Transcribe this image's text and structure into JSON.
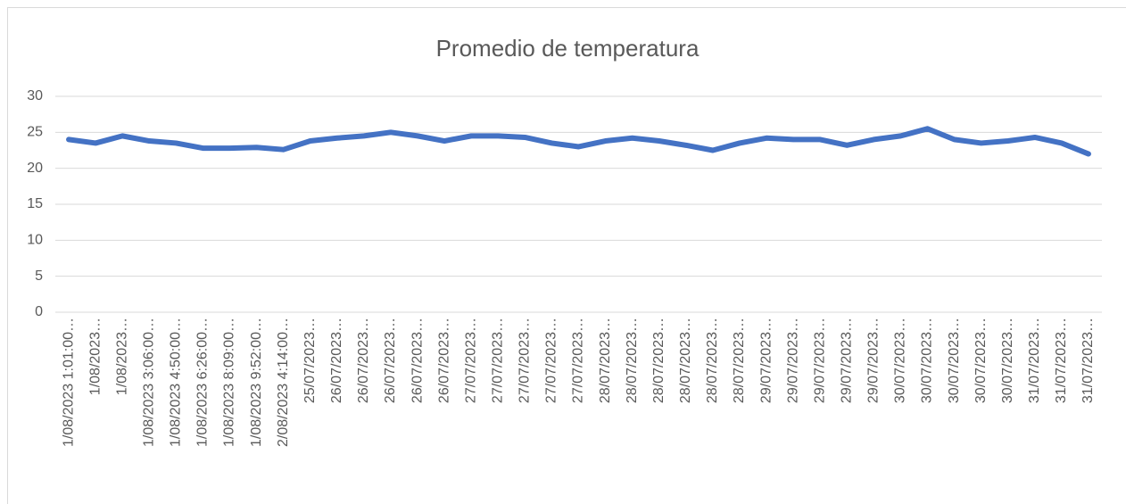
{
  "chart_data": {
    "type": "line",
    "title": "Promedio de temperatura",
    "categories": [
      "1/08/2023  1:01:00…",
      "1/08/2023…",
      "1/08/2023…",
      "1/08/2023  3:06:00…",
      "1/08/2023  4:50:00…",
      "1/08/2023  6:26:00…",
      "1/08/2023  8:09:00…",
      "1/08/2023  9:52:00…",
      "2/08/2023  4:14:00…",
      "25/07/2023…",
      "26/07/2023…",
      "26/07/2023…",
      "26/07/2023…",
      "26/07/2023…",
      "26/07/2023…",
      "27/07/2023…",
      "27/07/2023…",
      "27/07/2023…",
      "27/07/2023…",
      "27/07/2023…",
      "28/07/2023…",
      "28/07/2023…",
      "28/07/2023…",
      "28/07/2023…",
      "28/07/2023…",
      "28/07/2023…",
      "29/07/2023…",
      "29/07/2023…",
      "29/07/2023…",
      "29/07/2023…",
      "29/07/2023…",
      "30/07/2023…",
      "30/07/2023…",
      "30/07/2023…",
      "30/07/2023…",
      "30/07/2023…",
      "31/07/2023…",
      "31/07/2023…",
      "31/07/2023…"
    ],
    "series": [
      {
        "name": "Promedio de temperatura",
        "color": "#4472c4",
        "values": [
          24,
          23.5,
          24.5,
          23.8,
          23.5,
          22.8,
          22.8,
          22.9,
          22.6,
          23.8,
          24.2,
          24.5,
          25,
          24.5,
          23.8,
          24.5,
          24.5,
          24.3,
          23.5,
          23,
          23.8,
          24.2,
          23.8,
          23.2,
          22.5,
          23.5,
          24.2,
          24,
          24,
          23.2,
          24,
          24.5,
          25.5,
          24,
          23.5,
          23.8,
          24.3,
          23.5,
          22
        ]
      }
    ],
    "ylim": [
      0,
      30
    ],
    "yticks": [
      0,
      5,
      10,
      15,
      20,
      25,
      30
    ],
    "grid": true
  }
}
